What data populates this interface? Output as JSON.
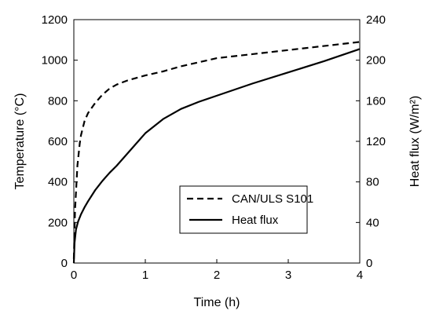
{
  "chart_data": {
    "type": "line",
    "xlabel": "Time (h)",
    "ylabel": "Temperature (°C)",
    "y2label": "Heat flux (W/m²)",
    "xlim": [
      0,
      4
    ],
    "ylim": [
      0,
      1200
    ],
    "y2lim": [
      0,
      240
    ],
    "xticks": [
      0,
      1,
      2,
      3,
      4
    ],
    "yticks": [
      0,
      200,
      400,
      600,
      800,
      1000,
      1200
    ],
    "y2ticks": [
      0,
      40,
      80,
      120,
      160,
      200,
      240
    ],
    "grid": false,
    "legend_position": "lower-right",
    "series": [
      {
        "name": "CAN/ULS S101",
        "axis": "left",
        "style": "dashed",
        "color": "#000000",
        "x": [
          0,
          0.0167,
          0.05,
          0.083,
          0.1,
          0.15,
          0.2,
          0.3,
          0.4,
          0.5,
          0.6,
          0.75,
          1.0,
          1.25,
          1.5,
          1.75,
          2.0,
          2.5,
          3.0,
          3.5,
          4.0
        ],
        "y": [
          20,
          260,
          480,
          590,
          630,
          700,
          740,
          790,
          830,
          860,
          880,
          900,
          925,
          945,
          970,
          990,
          1010,
          1030,
          1050,
          1070,
          1090
        ]
      },
      {
        "name": "Heat flux",
        "axis": "right",
        "style": "solid",
        "color": "#000000",
        "x": [
          0,
          0.01,
          0.03,
          0.06,
          0.1,
          0.15,
          0.2,
          0.3,
          0.4,
          0.5,
          0.6,
          0.75,
          0.9,
          1.0,
          1.25,
          1.5,
          1.75,
          2.0,
          2.5,
          3.0,
          3.5,
          4.0
        ],
        "y": [
          0,
          20,
          33,
          41,
          48,
          55,
          61,
          72,
          81,
          89,
          96,
          108,
          120,
          128,
          142,
          152,
          159,
          165,
          177,
          188,
          199,
          211
        ]
      }
    ]
  }
}
